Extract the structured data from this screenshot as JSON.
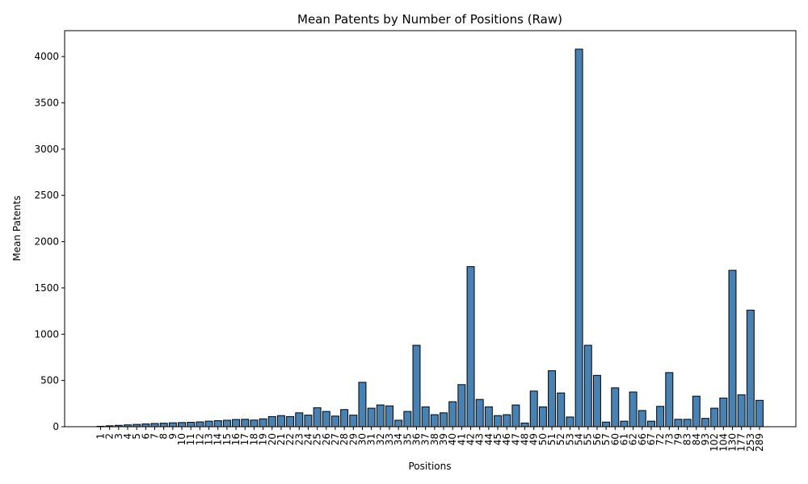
{
  "chart_data": {
    "type": "bar",
    "title": "Mean Patents by Number of Positions (Raw)",
    "xlabel": "Positions",
    "ylabel": "Mean Patents",
    "ylim": [
      0,
      4280
    ],
    "yticks": [
      0,
      500,
      1000,
      1500,
      2000,
      2500,
      3000,
      3500,
      4000
    ],
    "grid": false,
    "categories": [
      "1",
      "2",
      "3",
      "4",
      "5",
      "6",
      "7",
      "8",
      "9",
      "10",
      "11",
      "12",
      "13",
      "14",
      "15",
      "16",
      "17",
      "18",
      "19",
      "20",
      "21",
      "22",
      "23",
      "24",
      "25",
      "26",
      "27",
      "28",
      "29",
      "30",
      "31",
      "32",
      "33",
      "34",
      "35",
      "36",
      "37",
      "38",
      "39",
      "40",
      "41",
      "42",
      "43",
      "44",
      "45",
      "46",
      "47",
      "48",
      "49",
      "50",
      "51",
      "52",
      "53",
      "54",
      "55",
      "56",
      "57",
      "60",
      "61",
      "62",
      "66",
      "67",
      "72",
      "73",
      "79",
      "83",
      "84",
      "93",
      "102",
      "104",
      "130",
      "177",
      "253",
      "289"
    ],
    "values": [
      5,
      10,
      15,
      20,
      25,
      30,
      35,
      38,
      42,
      45,
      48,
      52,
      60,
      65,
      70,
      78,
      80,
      72,
      85,
      110,
      120,
      110,
      150,
      125,
      205,
      165,
      115,
      185,
      125,
      480,
      200,
      235,
      225,
      70,
      165,
      880,
      215,
      130,
      150,
      270,
      455,
      1730,
      295,
      215,
      120,
      130,
      235,
      40,
      385,
      215,
      605,
      365,
      105,
      4080,
      880,
      555,
      50,
      420,
      60,
      375,
      175,
      60,
      220,
      585,
      80,
      80,
      330,
      90,
      200,
      310,
      1690,
      345,
      1260,
      285
    ]
  }
}
